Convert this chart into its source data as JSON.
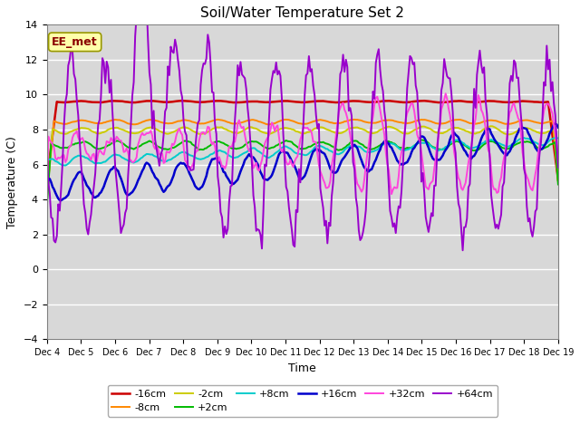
{
  "title": "Soil/Water Temperature Set 2",
  "xlabel": "Time",
  "ylabel": "Temperature (C)",
  "ylim": [
    -4,
    14
  ],
  "xlim": [
    0,
    15
  ],
  "annotation_text": "EE_met",
  "bg_color": "#d8d8d8",
  "series_colors": {
    "-16cm": "#cc0000",
    "-8cm": "#ff8800",
    "-2cm": "#cccc00",
    "+2cm": "#00bb00",
    "+8cm": "#00cccc",
    "+16cm": "#0000cc",
    "+32cm": "#ff44dd",
    "+64cm": "#9900cc"
  },
  "legend_row1": [
    "-16cm",
    "-8cm",
    "-2cm",
    "+2cm",
    "+8cm",
    "+16cm"
  ],
  "legend_row2": [
    "+32cm",
    "+64cm"
  ]
}
